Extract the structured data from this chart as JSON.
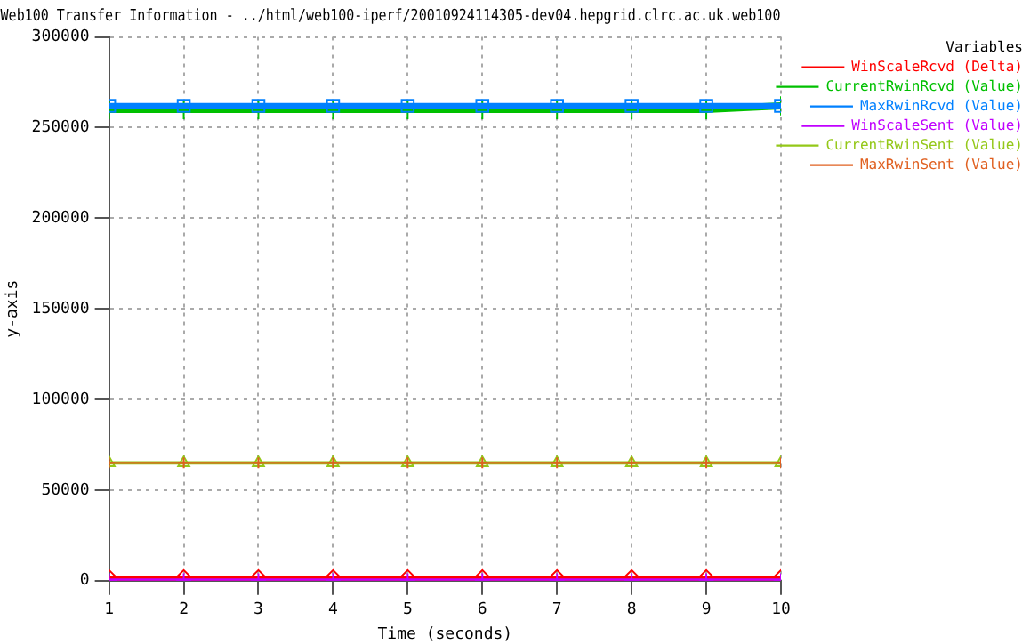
{
  "chart_data": {
    "type": "line",
    "title": "Web100 Transfer Information - ../html/web100-iperf/20010924114305-dev04.hepgrid.clrc.ac.uk.web100",
    "xlabel": "Time (seconds)",
    "ylabel": "y-axis",
    "legend_title": "Variables",
    "legend": "right",
    "grid": true,
    "x": [
      1,
      2,
      3,
      4,
      5,
      6,
      7,
      8,
      9,
      10
    ],
    "xlim": [
      1,
      10
    ],
    "xticks": [
      1,
      2,
      3,
      4,
      5,
      6,
      7,
      8,
      9,
      10
    ],
    "ylim": [
      0,
      300000
    ],
    "yticks": [
      0,
      50000,
      100000,
      150000,
      200000,
      250000,
      300000
    ],
    "series": [
      {
        "name": "WinScaleRcvd (Delta)",
        "color": "#ff0000",
        "marker": "diamond",
        "values": [
          0,
          0,
          0,
          0,
          0,
          0,
          0,
          0,
          0,
          0
        ]
      },
      {
        "name": "CurrentRwinRcvd (Value)",
        "color": "#00c000",
        "marker": "cross",
        "values": [
          260000,
          260000,
          260000,
          260000,
          260000,
          260000,
          260000,
          260000,
          260000,
          262000
        ]
      },
      {
        "name": "MaxRwinRcvd (Value)",
        "color": "#0080ff",
        "marker": "square",
        "values": [
          262000,
          262000,
          262000,
          262000,
          262000,
          262000,
          262000,
          262000,
          262000,
          262000
        ]
      },
      {
        "name": "WinScaleSent (Value)",
        "color": "#c000ff",
        "marker": "cross",
        "values": [
          0,
          0,
          0,
          0,
          0,
          0,
          0,
          0,
          0,
          0
        ]
      },
      {
        "name": "CurrentRwinSent (Value)",
        "color": "#94c818",
        "marker": "triangle",
        "values": [
          65000,
          65000,
          65000,
          65000,
          65000,
          65000,
          65000,
          65000,
          65000,
          65000
        ]
      },
      {
        "name": "MaxRwinSent (Value)",
        "color": "#e06020",
        "marker": "cross",
        "values": [
          65000,
          65000,
          65000,
          65000,
          65000,
          65000,
          65000,
          65000,
          65000,
          65000
        ]
      }
    ]
  }
}
